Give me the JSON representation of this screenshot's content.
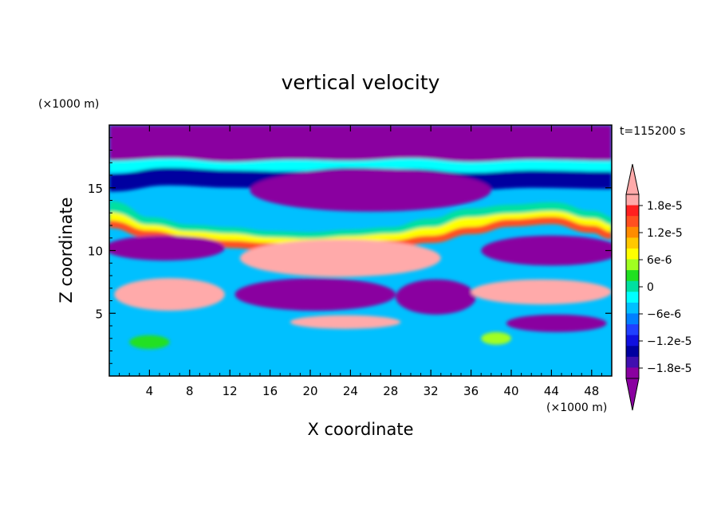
{
  "chart_data": {
    "type": "heatmap",
    "title": "vertical velocity",
    "xlabel": "X coordinate",
    "ylabel": "Z coordinate",
    "x_unit": "(×1000 m)",
    "y_unit": "(×1000 m)",
    "time_label": "t=115200 s",
    "xlim": [
      0,
      50
    ],
    "ylim": [
      0,
      20
    ],
    "x_ticks": [
      4,
      8,
      12,
      16,
      20,
      24,
      28,
      32,
      36,
      40,
      44,
      48
    ],
    "y_ticks": [
      5,
      10,
      15
    ],
    "colorbar": {
      "ticks": [
        {
          "value": 1.8e-05,
          "label": "1.8e-5"
        },
        {
          "value": 1.2e-05,
          "label": "1.2e-5"
        },
        {
          "value": 6e-06,
          "label": "6e-6"
        },
        {
          "value": 0,
          "label": "0"
        },
        {
          "value": -6e-06,
          "label": "−6e-6"
        },
        {
          "value": -1.2e-05,
          "label": "−1.2e-5"
        },
        {
          "value": -1.8e-05,
          "label": "−1.8e-5"
        }
      ],
      "levels_top_to_bottom": [
        "#ffaaaa",
        "#ff2020",
        "#ff5020",
        "#ff8c00",
        "#ffc800",
        "#ffff00",
        "#a0ff20",
        "#20e020",
        "#00e0a0",
        "#00ffff",
        "#00c0ff",
        "#0080ff",
        "#2040ff",
        "#1010e0",
        "#0000a0",
        "#4010b0",
        "#8a00a0"
      ],
      "overflow_high": "#ffaaaa",
      "overflow_low": "#8a00a0"
    },
    "regions": [
      {
        "shape": "rect",
        "x0": 0,
        "x1": 50,
        "z0": 16.8,
        "z1": 20,
        "color": "#8a00a0"
      },
      {
        "shape": "band",
        "x": [
          0,
          6,
          12,
          18,
          24,
          30,
          36,
          42,
          50
        ],
        "z": [
          16.7,
          16.9,
          16.6,
          16.8,
          16.7,
          16.9,
          16.6,
          16.8,
          16.7
        ],
        "thickness": 0.9,
        "color": "#00ffff"
      },
      {
        "shape": "band",
        "x": [
          0,
          6,
          12,
          18,
          24,
          30,
          36,
          42,
          50
        ],
        "z": [
          15.4,
          15.9,
          15.7,
          15.6,
          15.9,
          15.8,
          15.5,
          15.7,
          15.6
        ],
        "thickness": 1.4,
        "color": "#0000a0"
      },
      {
        "shape": "ellipse",
        "cx": 26,
        "cz": 14.8,
        "rx": 12,
        "rz": 1.7,
        "color": "#8a00a0"
      },
      {
        "shape": "band",
        "x": [
          0,
          4,
          8,
          12,
          16,
          20,
          24,
          28,
          32,
          36,
          40,
          44,
          48,
          50
        ],
        "z": [
          13.3,
          12.0,
          11.4,
          11.2,
          10.9,
          10.8,
          11.0,
          11.2,
          11.9,
          12.7,
          13.0,
          13.2,
          12.5,
          12.0
        ],
        "thickness": 1.3,
        "color": "#00e0a0"
      },
      {
        "shape": "band",
        "x": [
          0,
          4,
          8,
          12,
          16,
          20,
          24,
          28,
          32,
          36,
          40,
          44,
          48,
          50
        ],
        "z": [
          12.6,
          11.6,
          11.1,
          10.9,
          10.6,
          10.5,
          10.7,
          10.9,
          11.4,
          12.2,
          12.5,
          12.7,
          12.1,
          11.6
        ],
        "thickness": 0.9,
        "color": "#ffff00"
      },
      {
        "shape": "band",
        "x": [
          0,
          4,
          8,
          12,
          16,
          20,
          24,
          28,
          32,
          36,
          40,
          44,
          48,
          50
        ],
        "z": [
          12.1,
          11.3,
          10.8,
          10.5,
          10.3,
          10.2,
          10.4,
          10.5,
          10.9,
          11.6,
          12.2,
          12.4,
          11.7,
          11.2
        ],
        "thickness": 0.6,
        "color": "#ff5020"
      },
      {
        "shape": "ellipse",
        "cx": 5.5,
        "cz": 10.2,
        "rx": 6,
        "rz": 1.0,
        "color": "#8a00a0"
      },
      {
        "shape": "ellipse",
        "cx": 44,
        "cz": 10.0,
        "rx": 7,
        "rz": 1.2,
        "color": "#8a00a0"
      },
      {
        "shape": "ellipse",
        "cx": 23,
        "cz": 9.4,
        "rx": 10,
        "rz": 1.5,
        "color": "#ffaaaa"
      },
      {
        "shape": "ellipse",
        "cx": 20.5,
        "cz": 6.5,
        "rx": 8,
        "rz": 1.3,
        "color": "#8a00a0"
      },
      {
        "shape": "ellipse",
        "cx": 32.5,
        "cz": 6.3,
        "rx": 4,
        "rz": 1.4,
        "color": "#8a00a0"
      },
      {
        "shape": "ellipse",
        "cx": 6,
        "cz": 6.5,
        "rx": 5.5,
        "rz": 1.3,
        "color": "#ffaaaa"
      },
      {
        "shape": "ellipse",
        "cx": 43,
        "cz": 6.7,
        "rx": 7,
        "rz": 1.0,
        "color": "#ffaaaa"
      },
      {
        "shape": "ellipse",
        "cx": 23.5,
        "cz": 4.3,
        "rx": 5.5,
        "rz": 0.55,
        "color": "#ffaaaa"
      },
      {
        "shape": "ellipse",
        "cx": 44.5,
        "cz": 4.2,
        "rx": 5,
        "rz": 0.7,
        "color": "#8a00a0"
      },
      {
        "shape": "ellipse",
        "cx": 4,
        "cz": 2.7,
        "rx": 2,
        "rz": 0.55,
        "color": "#20e020"
      },
      {
        "shape": "ellipse",
        "cx": 38.5,
        "cz": 3.0,
        "rx": 1.5,
        "rz": 0.5,
        "color": "#a0ff20"
      }
    ]
  }
}
